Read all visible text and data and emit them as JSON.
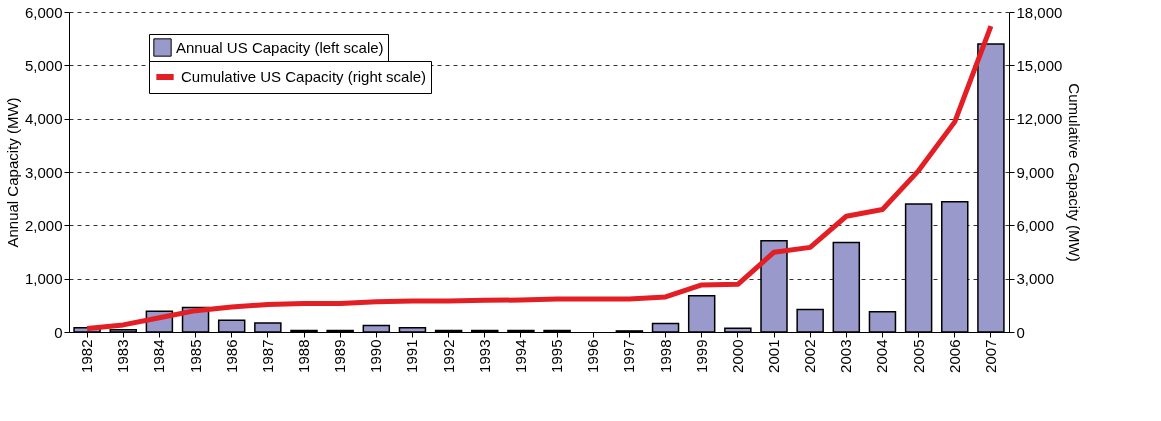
{
  "chart_data": {
    "type": "bar",
    "categories": [
      "1982",
      "1983",
      "1984",
      "1985",
      "1986",
      "1987",
      "1988",
      "1989",
      "1990",
      "1991",
      "1992",
      "1993",
      "1994",
      "1995",
      "1996",
      "1997",
      "1998",
      "1999",
      "2000",
      "2001",
      "2002",
      "2003",
      "2004",
      "2005",
      "2006",
      "2007"
    ],
    "series": [
      {
        "name": "Annual US Capacity (left scale)",
        "color": "#9999cc",
        "values": [
          80,
          40,
          390,
          460,
          220,
          170,
          30,
          30,
          120,
          80,
          30,
          30,
          30,
          30,
          null,
          20,
          160,
          680,
          70,
          1710,
          420,
          1680,
          380,
          2400,
          2440,
          5400
        ]
      },
      {
        "name": "Cumulative US Capacity (right scale)",
        "type": "line",
        "axis": "y2",
        "color": "#e31e24",
        "values": [
          200,
          400,
          800,
          1200,
          1400,
          1550,
          1600,
          1600,
          1700,
          1750,
          1750,
          1780,
          1800,
          1850,
          1850,
          1850,
          1970,
          2650,
          2680,
          4490,
          4760,
          6510,
          6890,
          9080,
          11820,
          17200
        ]
      }
    ],
    "ylabel": "Annual Capacity (MW)",
    "y2label": "Cumulative Capacity (MW)",
    "ylim": [
      0,
      6000
    ],
    "yticks": [
      0,
      {
        "value": 1000,
        "label": "1,000"
      },
      {
        "value": 2000,
        "label": "2,000"
      },
      {
        "value": 3000,
        "label": "3,000"
      },
      {
        "value": 4000,
        "label": "4,000"
      },
      {
        "value": 5000,
        "label": "5,000"
      },
      {
        "value": 6000,
        "label": "6,000"
      }
    ],
    "y2lim": [
      0,
      18000
    ],
    "y2ticks": [
      0,
      {
        "value": 3000,
        "label": "3,000"
      },
      {
        "value": 6000,
        "label": "6,000"
      },
      {
        "value": 9000,
        "label": "9,000"
      },
      {
        "value": 12000,
        "label": "12,000"
      },
      {
        "value": 15000,
        "label": "15,000"
      },
      {
        "value": 18000,
        "label": "18,000"
      }
    ],
    "grid": "y",
    "legend": "top left"
  }
}
